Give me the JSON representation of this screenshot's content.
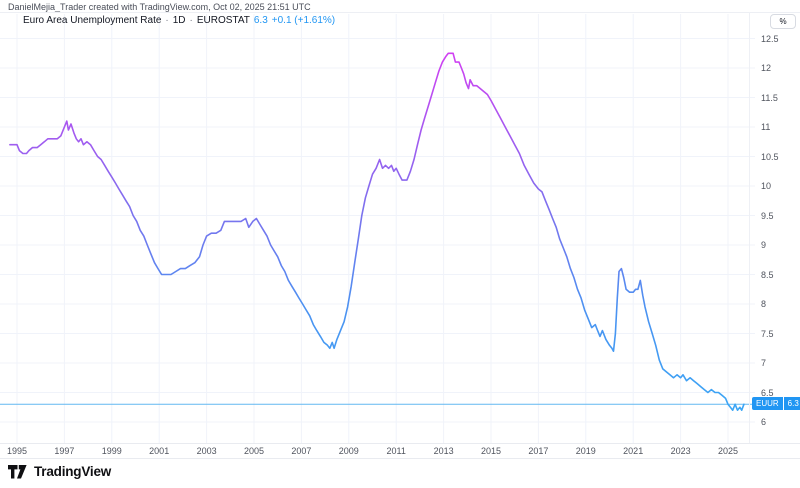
{
  "attribution": "DanielMejia_Trader created with TradingView.com, Oct 02, 2025 21:51 UTC",
  "legend": {
    "title": "Euro Area Unemployment Rate",
    "separator": "·",
    "interval": "1D",
    "source": "EUROSTAT",
    "last_value": "6.3",
    "change": "+0.1 (+1.61%)"
  },
  "axis_button_label": "%",
  "price_badge": {
    "symbol": "EUUR",
    "value": "6.3"
  },
  "footer": {
    "brand": "TradingView"
  },
  "colors": {
    "accent_blue": "#2196f3",
    "line_gradient_top": "#d83cf2",
    "line_gradient_upper": "#a957f0",
    "line_gradient_mid": "#7b72ee",
    "line_gradient_lower": "#4b92f1",
    "line_gradient_bottom": "#38a9f6",
    "grid": "#f0f3fa",
    "price_line": "#62b8f1",
    "badge_bg": "#2196f3"
  },
  "chart_data": {
    "type": "line",
    "title": "Euro Area Unemployment Rate",
    "ylabel": "%",
    "legend_position": "top-left",
    "grid": true,
    "xlim": [
      1994.3,
      2026.7
    ],
    "ylim": [
      5.65,
      12.9
    ],
    "x_ticks": [
      1995,
      1997,
      1999,
      2001,
      2003,
      2005,
      2007,
      2009,
      2011,
      2013,
      2015,
      2017,
      2019,
      2021,
      2023,
      2025
    ],
    "y_ticks": [
      6,
      6.5,
      7,
      7.5,
      8,
      8.5,
      9,
      9.5,
      10,
      10.5,
      11,
      11.5,
      12,
      12.5
    ],
    "current_value": 6.3,
    "x": [
      1994.7,
      1995.0,
      1995.1,
      1995.25,
      1995.4,
      1995.5,
      1995.65,
      1995.85,
      1996.0,
      1996.15,
      1996.3,
      1996.5,
      1996.7,
      1996.85,
      1997.0,
      1997.1,
      1997.17,
      1997.28,
      1997.4,
      1997.5,
      1997.6,
      1997.7,
      1997.8,
      1997.95,
      1998.1,
      1998.25,
      1998.4,
      1998.55,
      1998.7,
      1998.85,
      1999.0,
      1999.15,
      1999.3,
      1999.45,
      1999.6,
      1999.75,
      1999.9,
      2000.05,
      2000.2,
      2000.35,
      2000.5,
      2000.65,
      2000.8,
      2000.95,
      2001.1,
      2001.3,
      2001.5,
      2001.7,
      2001.9,
      2002.1,
      2002.3,
      2002.5,
      2002.7,
      2002.85,
      2003.0,
      2003.2,
      2003.4,
      2003.6,
      2003.75,
      2003.95,
      2004.2,
      2004.45,
      2004.65,
      2004.78,
      2004.95,
      2005.1,
      2005.25,
      2005.4,
      2005.55,
      2005.7,
      2005.85,
      2006.0,
      2006.15,
      2006.3,
      2006.45,
      2006.6,
      2006.75,
      2006.9,
      2007.05,
      2007.2,
      2007.35,
      2007.5,
      2007.65,
      2007.8,
      2007.95,
      2008.1,
      2008.2,
      2008.3,
      2008.38,
      2008.5,
      2008.65,
      2008.8,
      2008.95,
      2009.1,
      2009.25,
      2009.4,
      2009.55,
      2009.7,
      2009.85,
      2010.0,
      2010.15,
      2010.3,
      2010.42,
      2010.55,
      2010.68,
      2010.8,
      2010.9,
      2011.0,
      2011.12,
      2011.25,
      2011.45,
      2011.6,
      2011.75,
      2011.9,
      2012.05,
      2012.2,
      2012.35,
      2012.5,
      2012.65,
      2012.8,
      2012.95,
      2013.1,
      2013.2,
      2013.4,
      2013.5,
      2013.65,
      2013.75,
      2013.85,
      2013.95,
      2014.05,
      2014.12,
      2014.25,
      2014.4,
      2014.55,
      2014.7,
      2014.85,
      2015.0,
      2015.2,
      2015.4,
      2015.6,
      2015.8,
      2016.0,
      2016.2,
      2016.4,
      2016.6,
      2016.8,
      2017.0,
      2017.15,
      2017.3,
      2017.45,
      2017.6,
      2017.75,
      2017.9,
      2018.05,
      2018.2,
      2018.35,
      2018.5,
      2018.65,
      2018.8,
      2018.95,
      2019.1,
      2019.25,
      2019.4,
      2019.5,
      2019.6,
      2019.7,
      2019.85,
      2020.0,
      2020.1,
      2020.17,
      2020.25,
      2020.33,
      2020.4,
      2020.5,
      2020.6,
      2020.7,
      2020.85,
      2021.0,
      2021.1,
      2021.2,
      2021.3,
      2021.4,
      2021.5,
      2021.65,
      2021.8,
      2021.95,
      2022.1,
      2022.25,
      2022.4,
      2022.55,
      2022.7,
      2022.85,
      2023.0,
      2023.1,
      2023.25,
      2023.4,
      2023.55,
      2023.7,
      2023.85,
      2024.0,
      2024.15,
      2024.3,
      2024.45,
      2024.6,
      2024.75,
      2024.9,
      2025.0,
      2025.1,
      2025.2,
      2025.3,
      2025.4,
      2025.5,
      2025.58,
      2025.67
    ],
    "values": [
      10.7,
      10.7,
      10.6,
      10.55,
      10.55,
      10.6,
      10.65,
      10.65,
      10.7,
      10.75,
      10.8,
      10.8,
      10.8,
      10.85,
      11.0,
      11.1,
      10.95,
      11.05,
      10.9,
      10.8,
      10.75,
      10.8,
      10.7,
      10.75,
      10.7,
      10.6,
      10.5,
      10.45,
      10.35,
      10.25,
      10.15,
      10.05,
      9.95,
      9.85,
      9.75,
      9.65,
      9.5,
      9.4,
      9.25,
      9.15,
      9.0,
      8.85,
      8.7,
      8.6,
      8.5,
      8.5,
      8.5,
      8.55,
      8.6,
      8.6,
      8.65,
      8.7,
      8.8,
      9.0,
      9.15,
      9.2,
      9.2,
      9.25,
      9.4,
      9.4,
      9.4,
      9.4,
      9.45,
      9.3,
      9.4,
      9.45,
      9.35,
      9.25,
      9.15,
      9.0,
      8.9,
      8.8,
      8.65,
      8.55,
      8.4,
      8.3,
      8.2,
      8.1,
      8.0,
      7.9,
      7.8,
      7.65,
      7.55,
      7.45,
      7.35,
      7.3,
      7.25,
      7.35,
      7.25,
      7.4,
      7.55,
      7.7,
      7.95,
      8.3,
      8.7,
      9.1,
      9.5,
      9.8,
      10.0,
      10.2,
      10.3,
      10.45,
      10.3,
      10.35,
      10.3,
      10.35,
      10.25,
      10.3,
      10.2,
      10.1,
      10.1,
      10.25,
      10.45,
      10.7,
      10.95,
      11.15,
      11.35,
      11.55,
      11.75,
      11.95,
      12.1,
      12.2,
      12.25,
      12.25,
      12.1,
      12.1,
      12.0,
      11.9,
      11.75,
      11.65,
      11.8,
      11.7,
      11.7,
      11.65,
      11.6,
      11.55,
      11.45,
      11.3,
      11.15,
      11.0,
      10.85,
      10.7,
      10.55,
      10.35,
      10.2,
      10.05,
      9.95,
      9.9,
      9.75,
      9.6,
      9.45,
      9.3,
      9.1,
      8.95,
      8.8,
      8.6,
      8.45,
      8.25,
      8.1,
      7.9,
      7.75,
      7.6,
      7.65,
      7.55,
      7.45,
      7.55,
      7.4,
      7.3,
      7.25,
      7.2,
      7.5,
      8.1,
      8.55,
      8.6,
      8.45,
      8.25,
      8.2,
      8.2,
      8.25,
      8.25,
      8.4,
      8.15,
      7.95,
      7.7,
      7.5,
      7.3,
      7.05,
      6.9,
      6.85,
      6.8,
      6.75,
      6.8,
      6.75,
      6.8,
      6.7,
      6.75,
      6.7,
      6.65,
      6.6,
      6.55,
      6.5,
      6.55,
      6.5,
      6.5,
      6.45,
      6.4,
      6.3,
      6.25,
      6.2,
      6.3,
      6.2,
      6.25,
      6.2,
      6.3
    ]
  }
}
